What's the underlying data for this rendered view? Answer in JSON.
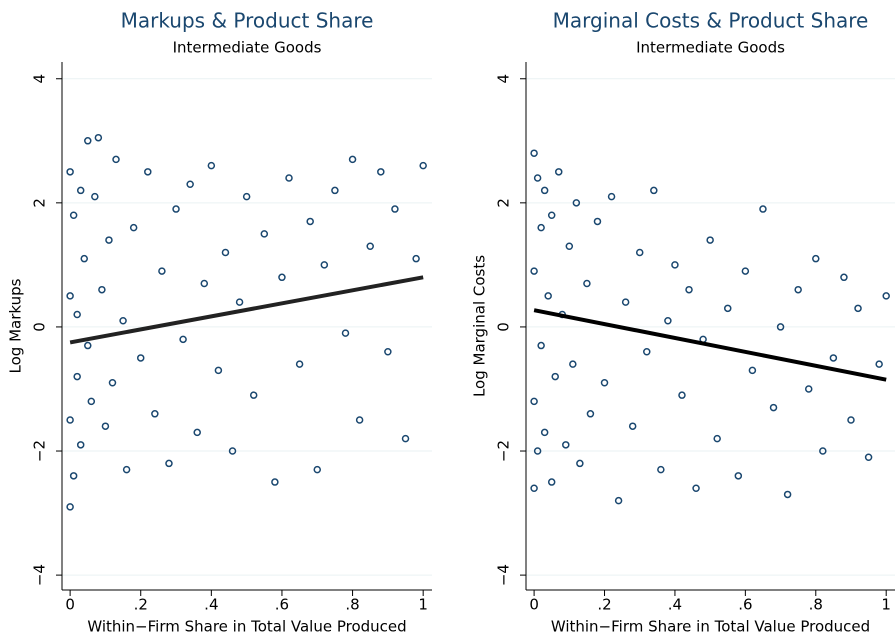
{
  "chart_data": [
    {
      "type": "scatter",
      "title": "Markups & Product Share",
      "subtitle": "Intermediate Goods",
      "xlabel": "Within−Firm Share in Total Value Produced",
      "ylabel": "Log Markups",
      "color": "#1a476f",
      "fit_color": "#222222",
      "xlim": [
        -0.023,
        1.025
      ],
      "ylim": [
        -4.24,
        4.27
      ],
      "xticks": [
        0,
        {
          "value": 0.2,
          "label": ".2"
        },
        {
          "value": 0.4,
          "label": ".4"
        },
        {
          "value": 0.6,
          "label": ".6"
        },
        {
          "value": 0.8,
          "label": ".8"
        },
        1
      ],
      "yticks": [
        {
          "value": -4,
          "label": "−4"
        },
        {
          "value": -2,
          "label": "−2"
        },
        0,
        2,
        4
      ],
      "grid": true,
      "x": [
        0,
        0,
        0,
        0,
        0.01,
        0.01,
        0.02,
        0.02,
        0.03,
        0.03,
        0.04,
        0.05,
        0.05,
        0.06,
        0.07,
        0.08,
        0.09,
        0.1,
        0.11,
        0.12,
        0.13,
        0.15,
        0.16,
        0.18,
        0.2,
        0.22,
        0.24,
        0.26,
        0.28,
        0.3,
        0.32,
        0.34,
        0.36,
        0.38,
        0.4,
        0.42,
        0.44,
        0.46,
        0.48,
        0.5,
        0.52,
        0.55,
        0.58,
        0.6,
        0.62,
        0.65,
        0.68,
        0.7,
        0.72,
        0.75,
        0.78,
        0.8,
        0.82,
        0.85,
        0.88,
        0.9,
        0.92,
        0.95,
        0.98,
        1
      ],
      "y": [
        -2.9,
        2.5,
        0.5,
        -1.5,
        -2.4,
        1.8,
        0.2,
        -0.8,
        2.2,
        -1.9,
        1.1,
        -0.3,
        3.0,
        -1.2,
        2.1,
        3.05,
        0.6,
        -1.6,
        1.4,
        -0.9,
        2.7,
        0.1,
        -2.3,
        1.6,
        -0.5,
        2.5,
        -1.4,
        0.9,
        -2.2,
        1.9,
        -0.2,
        2.3,
        -1.7,
        0.7,
        2.6,
        -0.7,
        1.2,
        -2.0,
        0.4,
        2.1,
        -1.1,
        1.5,
        -2.5,
        0.8,
        2.4,
        -0.6,
        1.7,
        -2.3,
        1.0,
        2.2,
        -0.1,
        2.7,
        -1.5,
        1.3,
        2.5,
        -0.4,
        1.9,
        -1.8,
        1.1,
        2.6
      ],
      "fit": {
        "x": [
          0,
          1
        ],
        "y": [
          -0.25,
          0.8
        ]
      }
    },
    {
      "type": "scatter",
      "title": "Marginal Costs & Product Share",
      "subtitle": "Intermediate Goods",
      "xlabel": "Within−Firm Share in Total Value Produced",
      "ylabel": "Log Marginal Costs",
      "color": "#1a476f",
      "fit_color": "#000000",
      "xlim": [
        -0.023,
        1.025
      ],
      "ylim": [
        -4.24,
        4.27
      ],
      "xticks": [
        0,
        {
          "value": 0.2,
          "label": ".2"
        },
        {
          "value": 0.4,
          "label": ".4"
        },
        {
          "value": 0.6,
          "label": ".6"
        },
        {
          "value": 0.8,
          "label": ".8"
        },
        1
      ],
      "yticks": [
        {
          "value": -4,
          "label": "−4"
        },
        {
          "value": -2,
          "label": "−2"
        },
        0,
        2,
        4
      ],
      "grid": true,
      "x": [
        0,
        0,
        0,
        0,
        0.01,
        0.01,
        0.02,
        0.02,
        0.03,
        0.03,
        0.04,
        0.05,
        0.05,
        0.06,
        0.07,
        0.08,
        0.09,
        0.1,
        0.11,
        0.12,
        0.13,
        0.15,
        0.16,
        0.18,
        0.2,
        0.22,
        0.24,
        0.26,
        0.28,
        0.3,
        0.32,
        0.34,
        0.36,
        0.38,
        0.4,
        0.42,
        0.44,
        0.46,
        0.48,
        0.5,
        0.52,
        0.55,
        0.58,
        0.6,
        0.62,
        0.65,
        0.68,
        0.7,
        0.72,
        0.75,
        0.78,
        0.8,
        0.82,
        0.85,
        0.88,
        0.9,
        0.92,
        0.95,
        0.98,
        1
      ],
      "y": [
        2.8,
        -2.6,
        0.9,
        -1.2,
        2.4,
        -2.0,
        1.6,
        -0.3,
        2.2,
        -1.7,
        0.5,
        -2.5,
        1.8,
        -0.8,
        2.5,
        0.2,
        -1.9,
        1.3,
        -0.6,
        2.0,
        -2.2,
        0.7,
        -1.4,
        1.7,
        -0.9,
        2.1,
        -2.8,
        0.4,
        -1.6,
        1.2,
        -0.4,
        2.2,
        -2.3,
        0.1,
        1.0,
        -1.1,
        0.6,
        -2.6,
        -0.2,
        1.4,
        -1.8,
        0.3,
        -2.4,
        0.9,
        -0.7,
        1.9,
        -1.3,
        0.0,
        -2.7,
        0.6,
        -1.0,
        1.1,
        -2.0,
        -0.5,
        0.8,
        -1.5,
        0.3,
        -2.1,
        -0.6,
        0.5
      ],
      "fit": {
        "x": [
          0,
          1
        ],
        "y": [
          0.27,
          -0.85
        ]
      }
    }
  ]
}
